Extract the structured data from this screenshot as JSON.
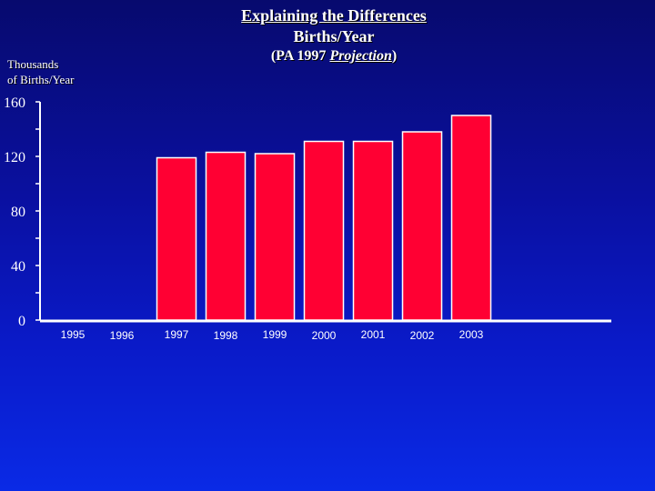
{
  "header": {
    "title_line1": "Explaining the Differences",
    "title_line2": "Births/Year",
    "subtitle_open": "(PA 1997 ",
    "subtitle_emph": "Projection",
    "subtitle_close": ")"
  },
  "y_axis_label": {
    "line1": "Thousands",
    "line2": "of Births/Year"
  },
  "colors": {
    "bar": "#ff0033",
    "bar_edge": "#ffffff",
    "axis": "#ffffff"
  },
  "chart_data": {
    "type": "bar",
    "categories": [
      "1995",
      "1996",
      "1997",
      "1998",
      "1999",
      "2000",
      "2001",
      "2002",
      "2003"
    ],
    "values": [
      null,
      null,
      119,
      123,
      122,
      131,
      131,
      138,
      150
    ],
    "ylim": [
      0,
      160
    ],
    "yticks": [
      "0",
      "40",
      "80",
      "120",
      "160"
    ],
    "ylabel": "Thousands of Births/Year",
    "grid": false
  }
}
